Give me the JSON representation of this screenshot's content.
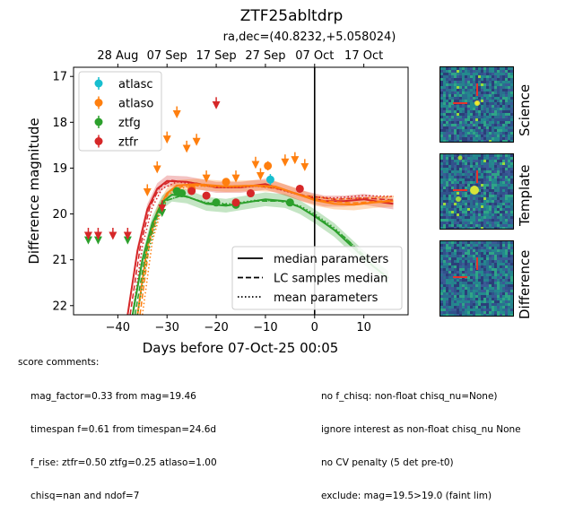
{
  "title": "ZTF25abltdrp",
  "subtitle": "ra,dec=(40.8232,+5.058024)",
  "chart_data": {
    "type": "scatter",
    "xlabel": "Days before 07-Oct-25 00:05",
    "ylabel": "Difference magnitude",
    "xlim": [
      -49,
      19
    ],
    "ylim": [
      22.2,
      16.8
    ],
    "y_inverted": true,
    "x_ticks": [
      "−40",
      "−30",
      "−20",
      "−10",
      "0",
      "10"
    ],
    "x_tick_values": [
      -40,
      -30,
      -20,
      -10,
      0,
      10
    ],
    "y_ticks": [
      "17",
      "18",
      "19",
      "20",
      "21",
      "22"
    ],
    "y_tick_values": [
      17,
      18,
      19,
      20,
      21,
      22
    ],
    "top_axis_ticks": [
      "28 Aug",
      "07 Sep",
      "17 Sep",
      "27 Sep",
      "07 Oct",
      "17 Oct"
    ],
    "top_axis_tick_values": [
      -40,
      -30,
      -20,
      -10,
      0,
      10
    ],
    "vline_x": 0,
    "legend_position": "top-left",
    "legend_lines_position": "bottom-right",
    "series": [
      {
        "name": "atlasc",
        "color": "#17becf",
        "points": [
          {
            "x": -9,
            "y": 19.25,
            "err": 0.12
          }
        ],
        "upper_limits": []
      },
      {
        "name": "atlaso",
        "color": "#ff7f0e",
        "points": [
          {
            "x": -25,
            "y": 19.45,
            "err": 0.06
          },
          {
            "x": -18,
            "y": 19.3,
            "err": 0.06
          },
          {
            "x": -9.5,
            "y": 18.95,
            "err": 0.1
          }
        ],
        "upper_limits": [
          {
            "x": -34,
            "y": 19.45
          },
          {
            "x": -32,
            "y": 18.95
          },
          {
            "x": -30,
            "y": 18.3
          },
          {
            "x": -28,
            "y": 17.75
          },
          {
            "x": -26,
            "y": 18.5
          },
          {
            "x": -24,
            "y": 18.35
          },
          {
            "x": -22,
            "y": 19.15
          },
          {
            "x": -16,
            "y": 19.15
          },
          {
            "x": -12,
            "y": 18.85
          },
          {
            "x": -11,
            "y": 19.1
          },
          {
            "x": -6,
            "y": 18.8
          },
          {
            "x": -4,
            "y": 18.75
          },
          {
            "x": -2,
            "y": 18.9
          }
        ]
      },
      {
        "name": "ztfg",
        "color": "#2ca02c",
        "points": [
          {
            "x": -28,
            "y": 19.5,
            "err": 0.06
          },
          {
            "x": -27,
            "y": 19.55,
            "err": 0.06
          },
          {
            "x": -20,
            "y": 19.75,
            "err": 0.08
          },
          {
            "x": -16,
            "y": 19.8,
            "err": 0.08
          },
          {
            "x": -5,
            "y": 19.75,
            "err": 0.06
          }
        ],
        "upper_limits": [
          {
            "x": -46,
            "y": 20.5
          },
          {
            "x": -44,
            "y": 20.5
          },
          {
            "x": -38,
            "y": 20.5
          },
          {
            "x": -31,
            "y": 19.9
          }
        ]
      },
      {
        "name": "ztfr",
        "color": "#d62728",
        "points": [
          {
            "x": -25,
            "y": 19.5,
            "err": 0.08
          },
          {
            "x": -22,
            "y": 19.6,
            "err": 0.08
          },
          {
            "x": -16,
            "y": 19.75,
            "err": 0.08
          },
          {
            "x": -13,
            "y": 19.55,
            "err": 0.06
          },
          {
            "x": -3,
            "y": 19.45,
            "err": 0.08
          }
        ],
        "upper_limits": [
          {
            "x": -46,
            "y": 20.4
          },
          {
            "x": -44,
            "y": 20.4
          },
          {
            "x": -41,
            "y": 20.4
          },
          {
            "x": -38,
            "y": 20.4
          },
          {
            "x": -31,
            "y": 19.8
          },
          {
            "x": -20,
            "y": 17.55
          }
        ]
      }
    ],
    "model_curves": [
      {
        "color": "#d62728",
        "band": 0.12,
        "median": [
          [
            -38,
            22.2
          ],
          [
            -36,
            20.8
          ],
          [
            -34,
            19.9
          ],
          [
            -32,
            19.45
          ],
          [
            -30,
            19.28
          ],
          [
            -26,
            19.3
          ],
          [
            -20,
            19.42
          ],
          [
            -15,
            19.42
          ],
          [
            -10,
            19.35
          ],
          [
            -6,
            19.48
          ],
          [
            -2,
            19.62
          ],
          [
            2,
            19.72
          ],
          [
            6,
            19.72
          ],
          [
            10,
            19.68
          ],
          [
            14,
            19.75
          ],
          [
            16,
            19.78
          ]
        ],
        "dashed": [
          [
            -37.5,
            22.2
          ],
          [
            -35.5,
            20.75
          ],
          [
            -33.5,
            19.85
          ],
          [
            -31.5,
            19.42
          ],
          [
            -29,
            19.27
          ],
          [
            -24,
            19.33
          ],
          [
            -18,
            19.43
          ],
          [
            -12,
            19.38
          ],
          [
            -7,
            19.46
          ],
          [
            -2,
            19.6
          ],
          [
            4,
            19.68
          ],
          [
            10,
            19.65
          ],
          [
            16,
            19.7
          ]
        ],
        "dotted": [
          [
            -37,
            22.2
          ],
          [
            -35,
            20.7
          ],
          [
            -33,
            19.85
          ],
          [
            -31,
            19.45
          ],
          [
            -28,
            19.3
          ],
          [
            -22,
            19.38
          ],
          [
            -15,
            19.42
          ],
          [
            -10,
            19.38
          ],
          [
            -6,
            19.5
          ],
          [
            -2,
            19.62
          ],
          [
            4,
            19.65
          ],
          [
            10,
            19.6
          ],
          [
            16,
            19.62
          ]
        ]
      },
      {
        "color": "#ff7f0e",
        "band": 0.12,
        "median": [
          [
            -36,
            22.2
          ],
          [
            -34,
            20.7
          ],
          [
            -32,
            19.95
          ],
          [
            -30,
            19.55
          ],
          [
            -28,
            19.38
          ],
          [
            -24,
            19.35
          ],
          [
            -18,
            19.4
          ],
          [
            -12,
            19.38
          ],
          [
            -8,
            19.4
          ],
          [
            -4,
            19.55
          ],
          [
            0,
            19.7
          ],
          [
            4,
            19.78
          ],
          [
            8,
            19.8
          ],
          [
            12,
            19.75
          ],
          [
            16,
            19.72
          ]
        ],
        "dashed": [
          [
            -35.5,
            22.2
          ],
          [
            -33.5,
            20.6
          ],
          [
            -31.5,
            19.9
          ],
          [
            -29.5,
            19.5
          ],
          [
            -26,
            19.37
          ],
          [
            -20,
            19.4
          ],
          [
            -13,
            19.38
          ],
          [
            -8,
            19.42
          ],
          [
            -3,
            19.58
          ],
          [
            2,
            19.72
          ],
          [
            8,
            19.76
          ],
          [
            16,
            19.7
          ]
        ],
        "dotted": [
          [
            -35,
            22.2
          ],
          [
            -33,
            20.6
          ],
          [
            -31,
            19.85
          ],
          [
            -29,
            19.5
          ],
          [
            -25,
            19.38
          ],
          [
            -18,
            19.42
          ],
          [
            -12,
            19.4
          ],
          [
            -7,
            19.45
          ],
          [
            -2,
            19.6
          ],
          [
            4,
            19.68
          ],
          [
            10,
            19.65
          ],
          [
            16,
            19.62
          ]
        ]
      },
      {
        "color": "#2ca02c",
        "band": 0.15,
        "median": [
          [
            -37,
            22.2
          ],
          [
            -35,
            21.0
          ],
          [
            -33,
            20.2
          ],
          [
            -31,
            19.75
          ],
          [
            -29,
            19.58
          ],
          [
            -26,
            19.62
          ],
          [
            -22,
            19.78
          ],
          [
            -18,
            19.82
          ],
          [
            -14,
            19.75
          ],
          [
            -10,
            19.68
          ],
          [
            -6,
            19.72
          ],
          [
            -3,
            19.85
          ],
          [
            0,
            20.05
          ],
          [
            4,
            20.35
          ],
          [
            8,
            20.75
          ],
          [
            12,
            21.15
          ],
          [
            15,
            21.4
          ]
        ],
        "dashed": [
          [
            -36.5,
            22.2
          ],
          [
            -34.5,
            20.95
          ],
          [
            -32.5,
            20.15
          ],
          [
            -30.5,
            19.72
          ],
          [
            -27,
            19.6
          ],
          [
            -22,
            19.76
          ],
          [
            -17,
            19.8
          ],
          [
            -12,
            19.72
          ],
          [
            -7,
            19.72
          ],
          [
            -3,
            19.85
          ],
          [
            1,
            20.1
          ],
          [
            6,
            20.5
          ],
          [
            10,
            20.9
          ]
        ],
        "dotted": [
          [
            -36,
            22.2
          ],
          [
            -34,
            20.9
          ],
          [
            -32,
            20.1
          ],
          [
            -30,
            19.7
          ],
          [
            -27,
            19.6
          ],
          [
            -22,
            19.75
          ],
          [
            -17,
            19.78
          ],
          [
            -12,
            19.7
          ],
          [
            -7,
            19.72
          ],
          [
            -3,
            19.82
          ],
          [
            0,
            20.0
          ],
          [
            4,
            20.3
          ],
          [
            8,
            20.7
          ],
          [
            11,
            21.0
          ]
        ]
      }
    ],
    "line_legend": [
      {
        "label": "median parameters",
        "style": "solid"
      },
      {
        "label": "LC samples median",
        "style": "dashed"
      },
      {
        "label": "mean parameters",
        "style": "dotted"
      }
    ]
  },
  "stamps": [
    {
      "label": "Science"
    },
    {
      "label": "Template"
    },
    {
      "label": "Difference"
    }
  ],
  "score_comments": {
    "header": "score comments:",
    "left": [
      "mag_factor=0.33 from mag=19.46",
      "timespan f=0.61 from timespan=24.6d",
      "f_rise: ztfr=0.50 ztfg=0.25 atlaso=1.00",
      "chisq=nan and ndof=7"
    ],
    "right": [
      "no f_chisq: non-float chisq_nu=None)",
      "ignore interest as non-float chisq_nu None",
      "no CV penalty (5 det pre-t0)",
      "exclude: mag=19.5>19.0 (faint lim)"
    ]
  }
}
